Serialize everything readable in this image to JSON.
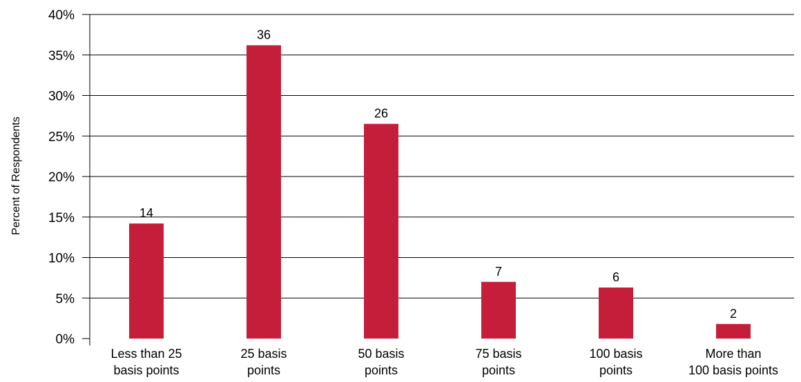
{
  "chart_data": {
    "type": "bar",
    "categories": [
      [
        "Less than 25",
        "basis points"
      ],
      [
        "25 basis",
        "points"
      ],
      [
        "50 basis",
        "points"
      ],
      [
        "75 basis",
        "points"
      ],
      [
        "100 basis",
        "points"
      ],
      [
        "More than",
        "100 basis points"
      ]
    ],
    "values": [
      14,
      36,
      26,
      7,
      6,
      2
    ],
    "bar_heights_percent": [
      14.2,
      36.2,
      26.5,
      7.0,
      6.3,
      1.8
    ],
    "data_labels": [
      "14",
      "36",
      "26",
      "7",
      "6",
      "2"
    ],
    "title": "",
    "xlabel": "",
    "ylabel": "Percent of Respondents",
    "ylim": [
      0,
      40
    ],
    "yticks": [
      "0%",
      "5%",
      "10%",
      "15%",
      "20%",
      "25%",
      "30%",
      "35%",
      "40%"
    ],
    "grid": true,
    "legend": "none",
    "colors": {
      "bar": "#C41E3A",
      "grid": "#000000",
      "axis": "#000000"
    }
  }
}
